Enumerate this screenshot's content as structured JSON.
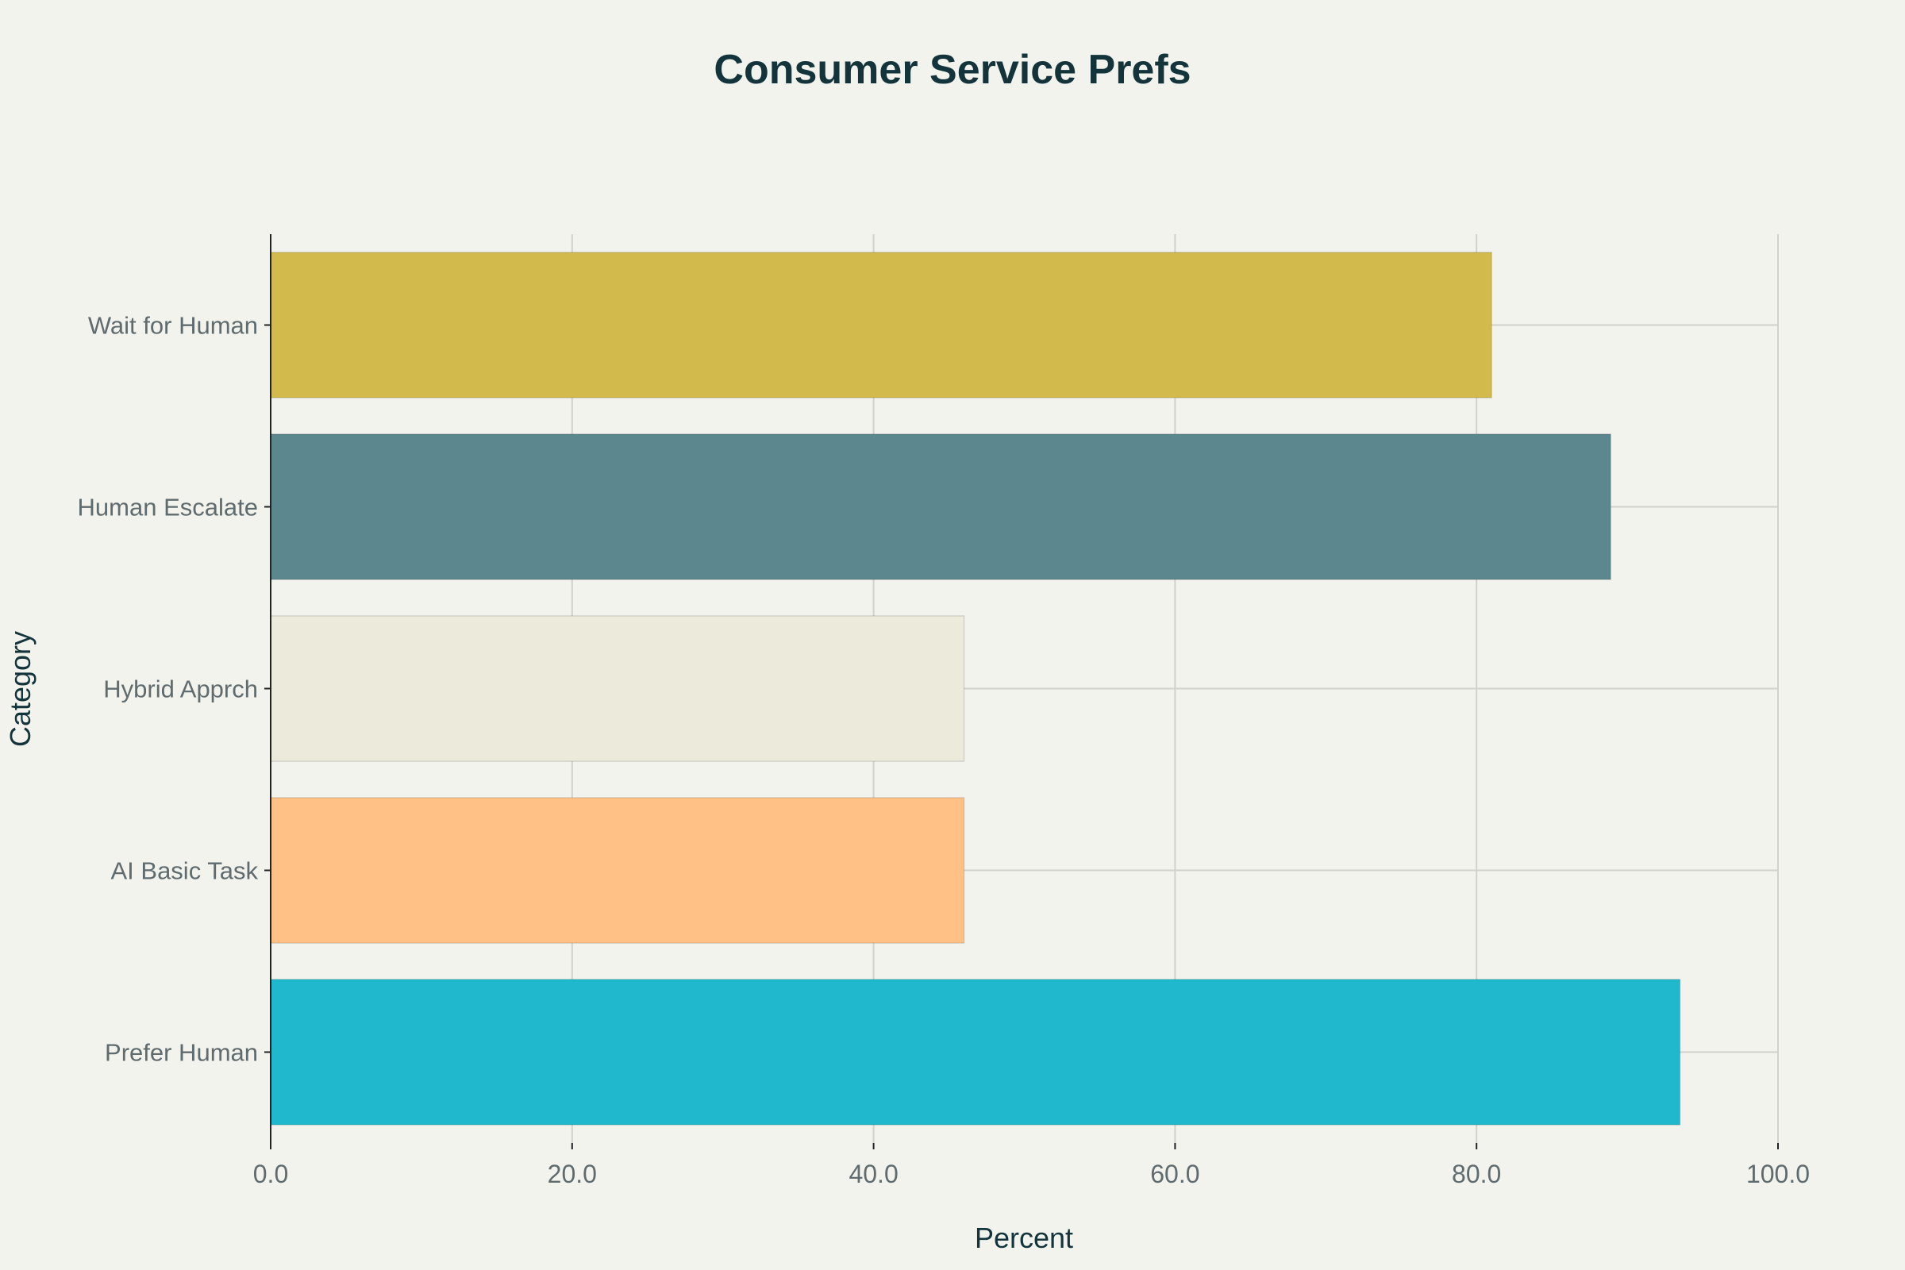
{
  "chart_data": {
    "type": "bar",
    "orientation": "horizontal",
    "title": "Consumer Service Prefs",
    "xlabel": "Percent",
    "ylabel": "Category",
    "xlim": [
      0,
      100
    ],
    "x_ticks": [
      "0.0",
      "20.0",
      "40.0",
      "60.0",
      "80.0",
      "100.0"
    ],
    "grid": true,
    "legend": "none",
    "categories": [
      "Prefer Human",
      "AI Basic Task",
      "Hybrid Apprch",
      "Human Escalate",
      "Wait for Human"
    ],
    "values": [
      93.5,
      46,
      46,
      88.9,
      81
    ],
    "colors": [
      "#1fb8cd",
      "#ffc185",
      "#eceadb",
      "#5d878f",
      "#d2ba4c"
    ]
  }
}
